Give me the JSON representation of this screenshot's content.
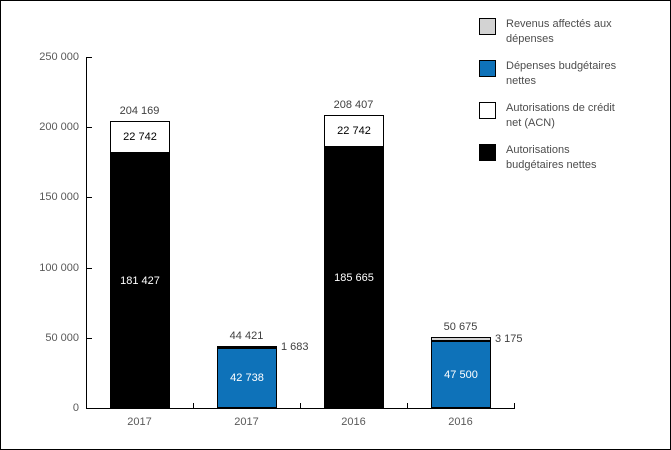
{
  "frame": {
    "background": "#ffffff",
    "border_color": "#000000"
  },
  "chart_data": {
    "type": "bar",
    "subtype": "stacked",
    "title": "",
    "xlabel": "",
    "ylabel": "",
    "ylim": [
      0,
      250000
    ],
    "grid": false,
    "y_ticks": [
      {
        "value": 0,
        "label": "0"
      },
      {
        "value": 50000,
        "label": "50 000"
      },
      {
        "value": 100000,
        "label": "100 000"
      },
      {
        "value": 150000,
        "label": "150 000"
      },
      {
        "value": 200000,
        "label": "200 000"
      },
      {
        "value": 250000,
        "label": "250 000"
      }
    ],
    "categories": [
      "2017",
      "2017",
      "2016",
      "2016"
    ],
    "bars": [
      {
        "category": "2017",
        "total": 204169,
        "total_label": "204 169",
        "segments": [
          {
            "series": "Autorisations budgétaires nettes",
            "value": 181427,
            "label": "181 427",
            "color": "#000000",
            "label_color": "#ffffff",
            "label_pos": "inside"
          },
          {
            "series": "Autorisations de crédit net (ACN)",
            "value": 22742,
            "label": "22 742",
            "color": "#ffffff",
            "label_color": "#000000",
            "label_pos": "inside"
          }
        ]
      },
      {
        "category": "2017",
        "total": 44421,
        "total_label": "44 421",
        "segments": [
          {
            "series": "Dépenses budgétaires nettes",
            "value": 42738,
            "label": "42 738",
            "color": "#0e72b9",
            "label_color": "#ffffff",
            "label_pos": "inside"
          },
          {
            "series": "Revenus affectés aux dépenses",
            "value": 1683,
            "label": "1 683",
            "color": "#d3d3d3",
            "label_color": "#404040",
            "label_pos": "right"
          }
        ]
      },
      {
        "category": "2016",
        "total": 208407,
        "total_label": "208 407",
        "segments": [
          {
            "series": "Autorisations budgétaires nettes",
            "value": 185665,
            "label": "185 665",
            "color": "#000000",
            "label_color": "#ffffff",
            "label_pos": "inside"
          },
          {
            "series": "Autorisations de crédit net (ACN)",
            "value": 22742,
            "label": "22 742",
            "color": "#ffffff",
            "label_color": "#000000",
            "label_pos": "inside"
          }
        ]
      },
      {
        "category": "2016",
        "total": 50675,
        "total_label": "50 675",
        "segments": [
          {
            "series": "Dépenses budgétaires nettes",
            "value": 47500,
            "label": "47 500",
            "color": "#0e72b9",
            "label_color": "#ffffff",
            "label_pos": "inside"
          },
          {
            "series": "Revenus affectés aux dépenses",
            "value": 3175,
            "label": "3 175",
            "color": "#d3d3d3",
            "label_color": "#404040",
            "label_pos": "right"
          }
        ]
      }
    ],
    "legend": {
      "position": "top-right",
      "items": [
        {
          "label": "Revenus affectés aux\ndépenses",
          "color": "#d3d3d3"
        },
        {
          "label": "Dépenses budgétaires\nnettes",
          "color": "#0e72b9"
        },
        {
          "label": "Autorisations de crédit\nnet (ACN)",
          "color": "#ffffff"
        },
        {
          "label": "Autorisations\nbudgétaires nettes",
          "color": "#000000"
        }
      ]
    }
  }
}
